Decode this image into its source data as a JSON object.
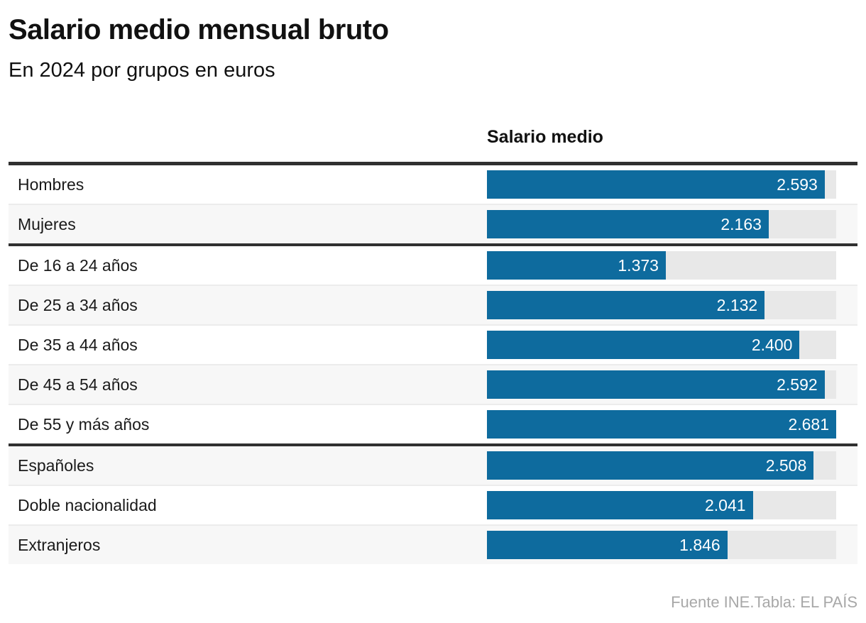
{
  "page": {
    "title": "Salario medio mensual bruto",
    "subtitle": "En 2024 por grupos en euros",
    "column_header": "Salario medio",
    "source": "Fuente INE.Tabla: EL PAÍS"
  },
  "colors": {
    "bar_fill": "#0E6B9E",
    "bar_track": "#E8E8E8",
    "row_alt_background": "#F7F7F7",
    "rule_dark": "#303030",
    "rule_light": "#ECECEC",
    "source_text": "#A8A8A8"
  },
  "chart_data": {
    "type": "bar",
    "orientation": "horizontal",
    "title": "Salario medio mensual bruto",
    "subtitle": "En 2024 por grupos en euros",
    "value_column_label": "Salario medio",
    "unit": "euros",
    "year": "2024",
    "xlim": [
      0,
      2681
    ],
    "grid": false,
    "legend": false,
    "categories": [
      "Hombres",
      "Mujeres",
      "De 16 a 24 años",
      "De 25 a 34 años",
      "De 35 a 44 años",
      "De 45 a 54 años",
      "De 55 y más años",
      "Españoles",
      "Doble nacionalidad",
      "Extranjeros"
    ],
    "values": [
      2593,
      2163,
      1373,
      2132,
      2400,
      2592,
      2681,
      2508,
      2041,
      1846
    ],
    "value_labels": [
      "2.593",
      "2.163",
      "1.373",
      "2.132",
      "2.400",
      "2.592",
      "2.681",
      "2.508",
      "2.041",
      "1.846"
    ],
    "group_breaks_after": [
      1,
      6
    ]
  }
}
